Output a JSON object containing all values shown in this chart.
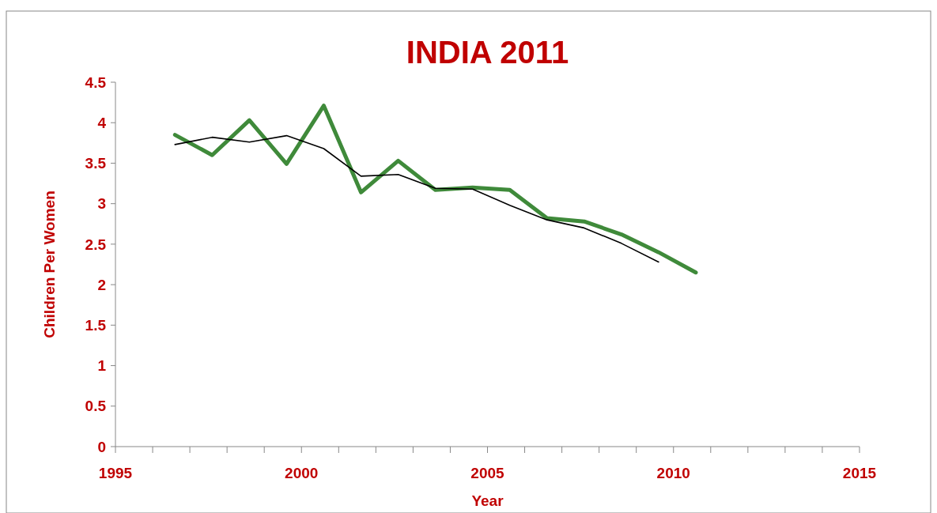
{
  "chart_data": {
    "type": "line",
    "title": "INDIA 2011",
    "xlabel": "Year",
    "ylabel": "Children Per Women",
    "xlim": [
      1995,
      2015
    ],
    "ylim": [
      0,
      4.5
    ],
    "xticks": [
      1995,
      {
        "value": 1996,
        "label": null
      },
      {
        "value": 1997,
        "label": null
      },
      {
        "value": 1998,
        "label": null
      },
      {
        "value": 1999,
        "label": null
      },
      2000,
      {
        "value": 2001,
        "label": null
      },
      {
        "value": 2002,
        "label": null
      },
      {
        "value": 2003,
        "label": null
      },
      {
        "value": 2004,
        "label": null
      },
      2005,
      {
        "value": 2006,
        "label": null
      },
      {
        "value": 2007,
        "label": null
      },
      {
        "value": 2008,
        "label": null
      },
      {
        "value": 2009,
        "label": null
      },
      2010,
      {
        "value": 2011,
        "label": null
      },
      {
        "value": 2012,
        "label": null
      },
      {
        "value": 2013,
        "label": null
      },
      {
        "value": 2014,
        "label": null
      },
      2015
    ],
    "yticks": [
      0,
      0.5,
      1,
      1.5,
      2,
      2.5,
      3,
      3.5,
      4,
      4.5
    ],
    "grid": false,
    "marker": "none",
    "line_style": "solid",
    "series": [
      {
        "color": "#3f8a3a",
        "x": [
          1996.6,
          1997.6,
          1998.6,
          1999.6,
          2000.6,
          2001.6,
          2002.6,
          2003.6,
          2004.6,
          2005.6,
          2006.6,
          2007.6,
          2008.6,
          2009.6,
          2010.6
        ],
        "values": [
          3.85,
          3.6,
          4.03,
          3.49,
          4.21,
          3.14,
          3.53,
          3.17,
          3.2,
          3.17,
          2.82,
          2.78,
          2.62,
          2.4,
          2.15
        ]
      },
      {
        "color": "#000000",
        "x": [
          1996.6,
          1997.6,
          1998.6,
          1999.6,
          2000.6,
          2001.6,
          2002.6,
          2003.6,
          2004.6,
          2005.6,
          2006.6,
          2007.6,
          2008.6,
          2009.6
        ],
        "values": [
          3.73,
          3.82,
          3.76,
          3.84,
          3.68,
          3.34,
          3.36,
          3.19,
          3.18,
          2.98,
          2.8,
          2.7,
          2.51,
          2.28
        ]
      }
    ]
  }
}
